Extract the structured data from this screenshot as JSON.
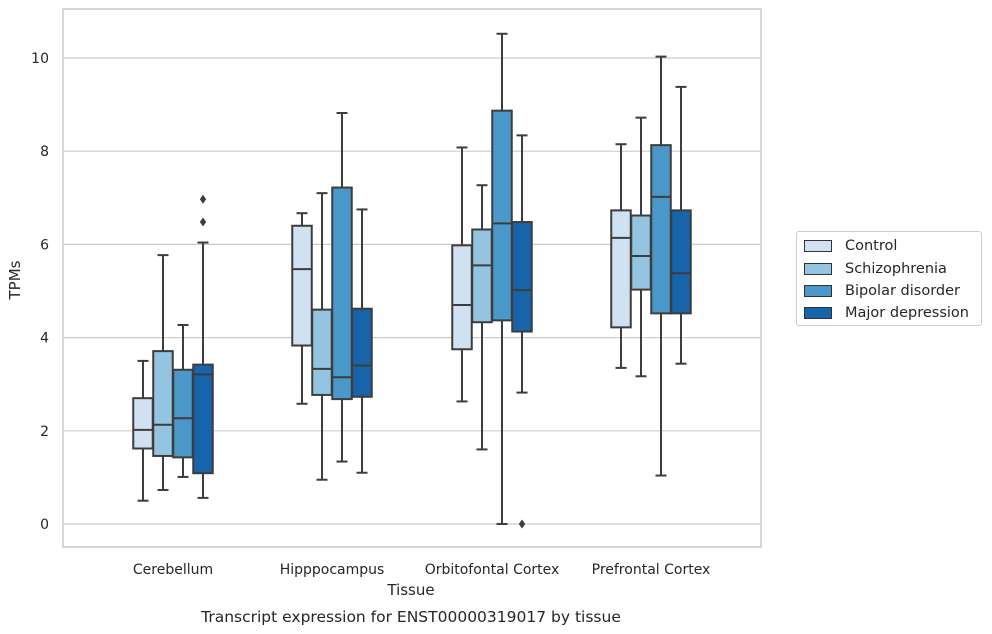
{
  "chart_data": {
    "type": "box",
    "title": "Transcript expression for ENST00000319017 by tissue",
    "xlabel": "Tissue",
    "ylabel": "TPMs",
    "ylim": [
      -0.5,
      11
    ],
    "yticks": [
      0,
      2,
      4,
      6,
      8,
      10
    ],
    "grid": "horizontal",
    "legend_position": "right",
    "categories": [
      "Cerebellum",
      "Hipppocampus",
      "Orbitofontal Cortex",
      "Prefrontal Cortex"
    ],
    "series": [
      {
        "name": "Control",
        "color": "#d0e1f2",
        "boxes": [
          {
            "whislo": 0.5,
            "q1": 1.62,
            "med": 2.02,
            "q3": 2.7,
            "whishi": 3.5,
            "fliers": []
          },
          {
            "whislo": 2.58,
            "q1": 3.83,
            "med": 5.47,
            "q3": 6.4,
            "whishi": 6.67,
            "fliers": []
          },
          {
            "whislo": 2.63,
            "q1": 3.75,
            "med": 4.7,
            "q3": 5.98,
            "whishi": 8.08,
            "fliers": []
          },
          {
            "whislo": 3.35,
            "q1": 4.22,
            "med": 6.14,
            "q3": 6.73,
            "whishi": 8.15,
            "fliers": []
          }
        ]
      },
      {
        "name": "Schizophrenia",
        "color": "#94c4df",
        "boxes": [
          {
            "whislo": 0.73,
            "q1": 1.46,
            "med": 2.13,
            "q3": 3.71,
            "whishi": 5.77,
            "fliers": []
          },
          {
            "whislo": 0.95,
            "q1": 2.77,
            "med": 3.33,
            "q3": 4.6,
            "whishi": 7.1,
            "fliers": []
          },
          {
            "whislo": 1.6,
            "q1": 4.33,
            "med": 5.55,
            "q3": 6.32,
            "whishi": 7.27,
            "fliers": []
          },
          {
            "whislo": 3.17,
            "q1": 5.03,
            "med": 5.75,
            "q3": 6.62,
            "whishi": 8.72,
            "fliers": []
          }
        ]
      },
      {
        "name": "Bipolar disorder",
        "color": "#4a98c9",
        "boxes": [
          {
            "whislo": 1.01,
            "q1": 1.43,
            "med": 2.27,
            "q3": 3.31,
            "whishi": 4.27,
            "fliers": []
          },
          {
            "whislo": 1.34,
            "q1": 2.68,
            "med": 3.15,
            "q3": 7.22,
            "whishi": 8.82,
            "fliers": []
          },
          {
            "whislo": 0.0,
            "q1": 4.37,
            "med": 6.45,
            "q3": 8.87,
            "whishi": 10.52,
            "fliers": []
          },
          {
            "whislo": 1.04,
            "q1": 4.52,
            "med": 7.02,
            "q3": 8.13,
            "whishi": 10.03,
            "fliers": []
          }
        ]
      },
      {
        "name": "Major depression",
        "color": "#1764ab",
        "boxes": [
          {
            "whislo": 0.56,
            "q1": 1.09,
            "med": 3.21,
            "q3": 3.42,
            "whishi": 6.04,
            "fliers": [
              6.97,
              6.48
            ]
          },
          {
            "whislo": 1.1,
            "q1": 2.73,
            "med": 3.4,
            "q3": 4.62,
            "whishi": 6.75,
            "fliers": []
          },
          {
            "whislo": 2.82,
            "q1": 4.13,
            "med": 5.02,
            "q3": 6.48,
            "whishi": 8.34,
            "fliers": [
              0.0
            ]
          },
          {
            "whislo": 3.44,
            "q1": 4.52,
            "med": 5.38,
            "q3": 6.73,
            "whishi": 9.38,
            "fliers": []
          }
        ]
      }
    ]
  }
}
